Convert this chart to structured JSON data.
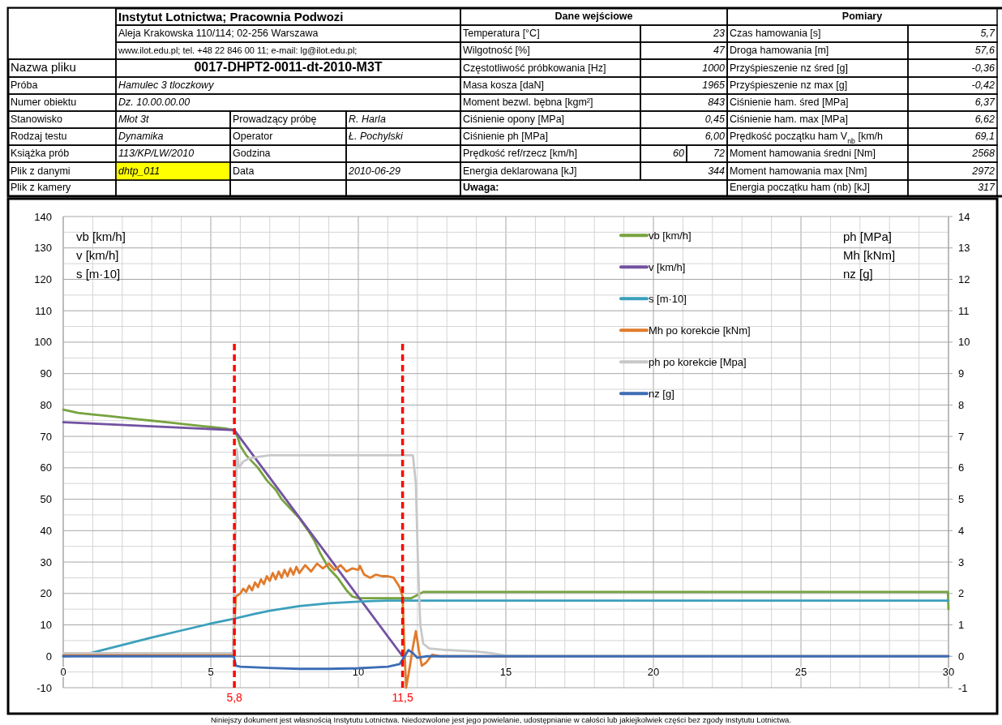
{
  "chart_data": [
    {
      "type": "other",
      "title": "Instytut Lotnictwa; Pracownia Podwozi",
      "annotations": [
        "Aleja Krakowska 110/114; 02-256 Warszawa",
        "www.ilot.edu.pl; tel. +48 22 846 00 11; e-mail: lg@ilot.edu.pl;",
        "Nazwa pliku",
        "0017-DHPT2-0011-dt-2010-M3T",
        "Próba",
        "Hamulec 3 tloczkowy",
        "Numer obiektu",
        "Dz. 10.00.00.00",
        "Stanowisko",
        "Młot 3t",
        "Prowadzący próbę",
        "R. Harla",
        "Rodzaj testu",
        "Dynamika",
        "Operator",
        "Ł. Pochylski",
        "Książka prób",
        "113/KP/LW/2010",
        "Godzina",
        "Plik z danymi",
        "dhtp_011",
        "Data",
        "2010-06-29",
        "Plik z kamery",
        "Dane wejściowe",
        "Temperatura [°C]",
        "23",
        "Wilgotność [%]",
        "47",
        "Częstotliwość próbkowania [Hz]",
        "1000",
        "Masa kosza [daN]",
        "1965",
        "Moment bezwl. bębna [kgm²]",
        "843",
        "Ciśnienie opony [MPa]",
        "0,45",
        "Ciśnienie ph [MPa]",
        "6,00",
        "Prędkość ref/rzecz [km/h]",
        "60",
        "72",
        "Energia deklarowana [kJ]",
        "344",
        "Uwaga:",
        "Pomiary",
        "Czas hamowania [s]",
        "5,7",
        "Droga hamowania [m]",
        "57,6",
        "Przyśpieszenie nz śred [g]",
        "-0,36",
        "Przyśpieszenie nz max [g]",
        "-0,42",
        "Ciśnienie ham. śred [MPa]",
        "6,37",
        "Ciśnienie ham. max [MPa]",
        "6,62",
        "Prędkość początku ham V$_{nb}$ [km/h",
        "69,1",
        "Moment hamowania średni [Nm]",
        "2568",
        "Moment hamowania max [Nm]",
        "2972",
        "Energia początku ham (nb) [kJ]",
        "317"
      ]
    },
    {
      "type": "line",
      "ylabel": "vb [km/h]\nv [km/h]\ns [m·10]",
      "y2label": "ph [MPa]\nMh [kNm]\nnz [g]",
      "xlim": [
        0,
        30
      ],
      "ylim": [
        -10,
        140
      ],
      "y2lim": [
        -1,
        14
      ],
      "xticks": [
        0,
        {
          "value": 1,
          "label": null
        },
        {
          "value": 2,
          "label": null
        },
        {
          "value": 3,
          "label": null
        },
        {
          "value": 4,
          "label": null
        },
        5,
        {
          "value": 6,
          "label": null
        },
        {
          "value": 7,
          "label": null
        },
        {
          "value": 8,
          "label": null
        },
        {
          "value": 9,
          "label": null
        },
        10,
        {
          "value": 11,
          "label": null
        },
        {
          "value": 12,
          "label": null
        },
        {
          "value": 13,
          "label": null
        },
        {
          "value": 14,
          "label": null
        },
        15,
        {
          "value": 16,
          "label": null
        },
        {
          "value": 17,
          "label": null
        },
        {
          "value": 18,
          "label": null
        },
        {
          "value": 19,
          "label": null
        },
        20,
        {
          "value": 21,
          "label": null
        },
        {
          "value": 22,
          "label": null
        },
        {
          "value": 23,
          "label": null
        },
        {
          "value": 24,
          "label": null
        },
        25,
        {
          "value": 26,
          "label": null
        },
        {
          "value": 27,
          "label": null
        },
        {
          "value": 28,
          "label": null
        },
        {
          "value": 29,
          "label": null
        },
        30
      ],
      "yticks": [
        -10,
        {
          "value": -5,
          "label": null
        },
        0,
        {
          "value": 5,
          "label": null
        },
        10,
        {
          "value": 15,
          "label": null
        },
        20,
        {
          "value": 25,
          "label": null
        },
        30,
        {
          "value": 35,
          "label": null
        },
        40,
        {
          "value": 45,
          "label": null
        },
        50,
        {
          "value": 55,
          "label": null
        },
        60,
        {
          "value": 65,
          "label": null
        },
        70,
        {
          "value": 75,
          "label": null
        },
        80,
        {
          "value": 85,
          "label": null
        },
        90,
        {
          "value": 95,
          "label": null
        },
        100,
        {
          "value": 105,
          "label": null
        },
        110,
        {
          "value": 115,
          "label": null
        },
        120,
        {
          "value": 125,
          "label": null
        },
        130,
        {
          "value": 135,
          "label": null
        },
        140
      ],
      "y2ticks": [
        -1,
        0,
        1,
        2,
        3,
        4,
        5,
        6,
        7,
        8,
        9,
        10,
        11,
        12,
        13,
        14
      ],
      "grid": true,
      "legend": "top right",
      "line_style": "solid",
      "marker": "none",
      "ref_lines": [
        {
          "axis": "x",
          "value": 5.8,
          "label": "5,8",
          "color": "#ff0000",
          "line_style": "dashed"
        },
        {
          "axis": "x",
          "value": 11.5,
          "label": "11,5",
          "color": "#ff0000",
          "line_style": "dashed"
        }
      ],
      "annotations": [
        "Niniejszy dokument jest własnością Instytutu Lotnictwa. Niedozwolone jest jego powielanie, udostępnianie w całości lub jakiejkolwiek części bez zgody Instytutu Lotnictwa."
      ],
      "series": [
        {
          "name": "vb [km/h]",
          "color": "#77a33f",
          "x": [
            0,
            0.5,
            1,
            1.5,
            2,
            2.5,
            3,
            3.5,
            4,
            4.5,
            5,
            5.5,
            5.8,
            5.9,
            6.0,
            6.2,
            6.4,
            6.6,
            6.9,
            7.2,
            7.4,
            7.7,
            8.0,
            8.3,
            8.5,
            8.7,
            9.0,
            9.3,
            9.6,
            9.8,
            10,
            10.5,
            11,
            11.5,
            11.8,
            12.0,
            12.2,
            13,
            14,
            15,
            16,
            17,
            18,
            19,
            20,
            21,
            22,
            23,
            24,
            25,
            26,
            27,
            28,
            29,
            29.98,
            30
          ],
          "values": [
            78.5,
            77.5,
            77,
            76.5,
            76,
            75.5,
            75,
            74.5,
            74,
            73.5,
            73,
            72.5,
            72,
            70,
            67,
            64,
            62,
            60,
            56,
            53,
            50,
            47,
            44,
            40,
            37,
            33,
            28,
            25,
            21,
            19,
            18.5,
            18.5,
            18.5,
            18.5,
            18.5,
            19.5,
            20.5,
            20.5,
            20.5,
            20.5,
            20.5,
            20.5,
            20.5,
            20.5,
            20.5,
            20.5,
            20.5,
            20.5,
            20.5,
            20.5,
            20.5,
            20.5,
            20.5,
            20.5,
            20.5,
            15
          ]
        },
        {
          "name": "v [km/h]",
          "color": "#7352a0",
          "x": [
            0,
            5.8,
            11.5
          ],
          "values": [
            74.5,
            72,
            0
          ]
        },
        {
          "name": "s [m·10]",
          "color": "#3ba0bc",
          "x": [
            0,
            0.7,
            1,
            2,
            3,
            4,
            5,
            5.8,
            6.5,
            7,
            8,
            9,
            10,
            10.5,
            11,
            30
          ],
          "values": [
            0,
            0.3,
            1.2,
            3.6,
            6,
            8.2,
            10.4,
            12,
            13.5,
            14.5,
            16,
            16.9,
            17.4,
            17.6,
            17.7,
            17.7
          ]
        },
        {
          "name": "Mh po korekcie [kNm]",
          "color": "#e07b2c",
          "axis": "y2",
          "x": [
            0,
            5.75,
            5.8,
            5.85,
            6.0,
            6.1,
            6.2,
            6.3,
            6.4,
            6.5,
            6.6,
            6.7,
            6.8,
            6.9,
            7.0,
            7.1,
            7.2,
            7.3,
            7.4,
            7.5,
            7.6,
            7.7,
            7.8,
            7.9,
            8.0,
            8.2,
            8.4,
            8.6,
            8.8,
            9.0,
            9.2,
            9.4,
            9.6,
            9.8,
            10.0,
            10.05,
            10.2,
            10.4,
            10.6,
            10.8,
            11.0,
            11.2,
            11.4,
            11.5,
            11.55,
            11.62,
            11.75,
            11.85,
            11.95,
            12.05,
            12.15,
            12.3,
            12.5,
            12.8,
            13.2,
            30
          ],
          "values": [
            0.05,
            0.05,
            1.0,
            1.9,
            2.0,
            2.15,
            2.05,
            2.25,
            2.1,
            2.35,
            2.2,
            2.45,
            2.3,
            2.55,
            2.4,
            2.65,
            2.45,
            2.7,
            2.5,
            2.75,
            2.55,
            2.8,
            2.6,
            2.85,
            2.65,
            2.9,
            2.7,
            2.95,
            2.8,
            2.95,
            2.75,
            2.9,
            2.7,
            2.8,
            2.75,
            2.88,
            2.6,
            2.5,
            2.6,
            2.55,
            2.55,
            2.5,
            2.2,
            1.9,
            0.5,
            -1.0,
            -0.3,
            0.3,
            0.8,
            0.2,
            -0.3,
            -0.2,
            0.05,
            0,
            0,
            0
          ]
        },
        {
          "name": "ph po korekcie [Mpa]",
          "color": "#c8c8c8",
          "axis": "y2",
          "x": [
            0,
            5.75,
            5.82,
            5.88,
            5.95,
            6.1,
            6.3,
            6.6,
            7,
            8,
            9,
            10,
            11,
            11.85,
            11.95,
            12.02,
            12.1,
            12.2,
            12.4,
            13,
            14,
            14.5,
            15,
            16,
            30
          ],
          "values": [
            0.1,
            0.1,
            3,
            6.6,
            6.0,
            6.2,
            6.3,
            6.35,
            6.4,
            6.4,
            6.4,
            6.4,
            6.4,
            6.4,
            5.5,
            3,
            1,
            0.4,
            0.25,
            0.2,
            0.15,
            0.1,
            0.02,
            0,
            0
          ]
        },
        {
          "name": "nz [g]",
          "color": "#3d6db5",
          "axis": "y2",
          "x": [
            0,
            5.78,
            5.85,
            6,
            7,
            8,
            9,
            10,
            11,
            11.4,
            11.5,
            11.7,
            11.85,
            12.0,
            12.3,
            30
          ],
          "values": [
            0,
            0,
            -0.3,
            -0.33,
            -0.37,
            -0.4,
            -0.4,
            -0.38,
            -0.33,
            -0.25,
            -0.1,
            0.2,
            0.1,
            -0.05,
            0,
            0
          ]
        }
      ]
    }
  ]
}
